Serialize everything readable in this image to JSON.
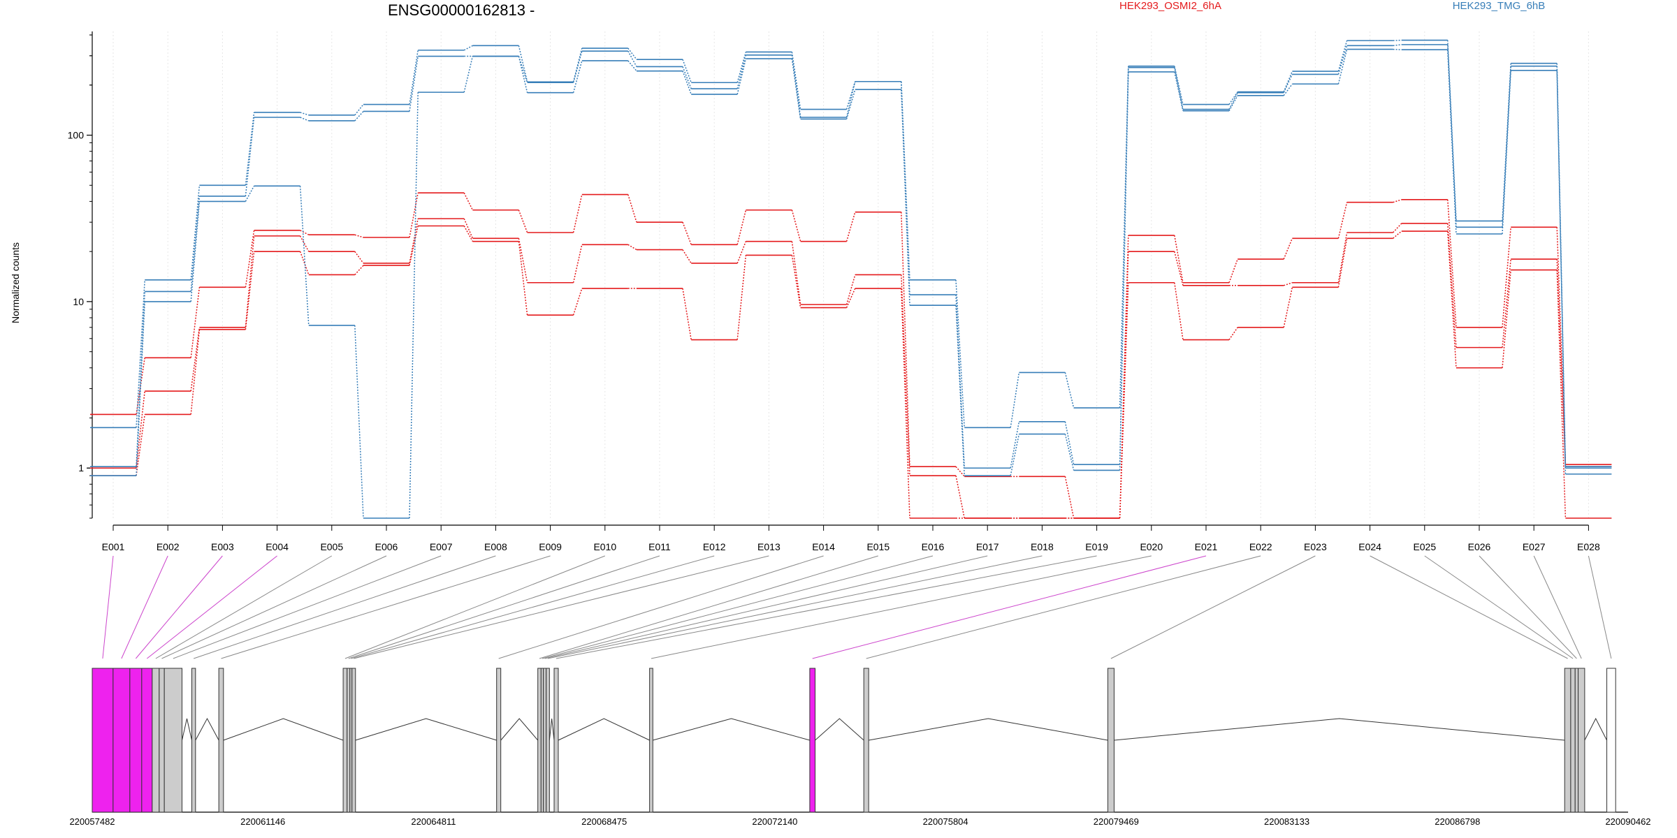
{
  "chart_data": {
    "type": "line",
    "title": "ENSG00000162813 -",
    "ylabel": "Normalized counts",
    "yscale": "log",
    "ylim": [
      0.5,
      420
    ],
    "yticks": [
      1,
      10,
      100
    ],
    "ytick_labels": [
      "1",
      "10",
      "100"
    ],
    "grid": "vertical-dotted",
    "categories": [
      "E001",
      "E002",
      "E003",
      "E004",
      "E005",
      "E006",
      "E007",
      "E008",
      "E009",
      "E010",
      "E011",
      "E012",
      "E013",
      "E014",
      "E015",
      "E016",
      "E017",
      "E018",
      "E019",
      "E020",
      "E021",
      "E022",
      "E023",
      "E024",
      "E025",
      "E026",
      "E027",
      "E028"
    ],
    "groups": [
      {
        "name": "HEK293_OSMI2_6hA",
        "color": "#e41a1c"
      },
      {
        "name": "HEK293_TMG_6hB",
        "color": "#377eb8"
      }
    ],
    "series": [
      {
        "group": 0,
        "values": [
          2.1,
          4.6,
          12.2,
          26.8,
          25.2,
          24.3,
          45.0,
          35.5,
          26.0,
          44.0,
          30.0,
          22.0,
          35.5,
          23.0,
          34.5,
          1.02,
          0.89,
          0.89,
          0.5,
          25.0,
          13.0,
          18.0,
          24.0,
          39.5,
          41.0,
          7.0,
          28.0,
          1.05
        ]
      },
      {
        "group": 0,
        "values": [
          1.0,
          2.9,
          7.0,
          24.8,
          20.0,
          17.0,
          31.5,
          24.0,
          13.0,
          22.0,
          20.5,
          17.0,
          23.0,
          9.6,
          14.5,
          0.9,
          0.5,
          0.5,
          0.5,
          20.0,
          12.5,
          12.5,
          13.0,
          26.0,
          29.5,
          5.3,
          18.0,
          1.02
        ]
      },
      {
        "group": 0,
        "values": [
          0.9,
          2.1,
          6.8,
          20.0,
          14.5,
          16.5,
          28.5,
          23.0,
          8.3,
          12.0,
          12.0,
          5.9,
          19.0,
          9.2,
          12.0,
          0.5,
          0.5,
          0.5,
          0.5,
          13.0,
          5.9,
          7.0,
          12.2,
          24.0,
          26.5,
          4.0,
          15.5,
          0.5
        ]
      },
      {
        "group": 1,
        "values": [
          1.75,
          13.5,
          50.0,
          137.0,
          132.0,
          153.0,
          324.0,
          345.0,
          209.0,
          333.0,
          285.0,
          207.0,
          316.0,
          143.0,
          210.0,
          13.5,
          1.75,
          3.75,
          2.3,
          260.0,
          153.0,
          182.0,
          242.0,
          370.0,
          372.0,
          30.5,
          270.0,
          1.02
        ]
      },
      {
        "group": 1,
        "values": [
          1.02,
          11.5,
          43.0,
          128.0,
          122.0,
          139.0,
          298.0,
          298.0,
          207.0,
          320.0,
          258.0,
          190.0,
          303.0,
          128.0,
          210.0,
          11.0,
          1.0,
          1.9,
          1.05,
          255.0,
          143.0,
          180.0,
          232.0,
          345.0,
          350.0,
          28.0,
          260.0,
          1.0
        ]
      },
      {
        "group": 1,
        "values": [
          0.9,
          10.0,
          40.0,
          49.5,
          7.2,
          0.5,
          181.0,
          298.0,
          180.0,
          280.0,
          243.0,
          176.0,
          288.0,
          125.0,
          188.0,
          9.5,
          0.9,
          1.6,
          0.97,
          240.0,
          140.0,
          173.0,
          203.0,
          328.0,
          326.0,
          25.5,
          245.0,
          0.92
        ]
      }
    ],
    "gene_model": {
      "coord_labels": [
        "220057482",
        "220061146",
        "220064811",
        "220068475",
        "220072140",
        "220075804",
        "220079469",
        "220083133",
        "220086798",
        "220090462"
      ],
      "range": [
        220057482,
        220090462
      ],
      "exons": [
        {
          "start": 220057482,
          "end": 220057930,
          "highlight": true
        },
        {
          "start": 220057930,
          "end": 220058290,
          "highlight": true
        },
        {
          "start": 220058290,
          "end": 220058545,
          "highlight": true
        },
        {
          "start": 220058545,
          "end": 220058770,
          "highlight": true
        },
        {
          "start": 220058770,
          "end": 220058920,
          "highlight": false
        },
        {
          "start": 220058920,
          "end": 220059030,
          "highlight": false
        },
        {
          "start": 220059030,
          "end": 220059410,
          "highlight": false
        },
        {
          "start": 220059620,
          "end": 220059700,
          "highlight": false
        },
        {
          "start": 220060200,
          "end": 220060300,
          "highlight": false
        },
        {
          "start": 220062870,
          "end": 220062955,
          "highlight": false
        },
        {
          "start": 220062955,
          "end": 220063015,
          "highlight": false
        },
        {
          "start": 220063015,
          "end": 220063060,
          "highlight": false
        },
        {
          "start": 220063060,
          "end": 220063135,
          "highlight": false
        },
        {
          "start": 220066165,
          "end": 220066255,
          "highlight": false
        },
        {
          "start": 220067050,
          "end": 220067120,
          "highlight": false
        },
        {
          "start": 220067120,
          "end": 220067170,
          "highlight": false
        },
        {
          "start": 220067170,
          "end": 220067230,
          "highlight": false
        },
        {
          "start": 220067230,
          "end": 220067300,
          "highlight": false
        },
        {
          "start": 220067400,
          "end": 220067490,
          "highlight": false
        },
        {
          "start": 220069450,
          "end": 220069520,
          "highlight": false
        },
        {
          "start": 220072890,
          "end": 220073005,
          "highlight": true
        },
        {
          "start": 220074050,
          "end": 220074155,
          "highlight": false
        },
        {
          "start": 220079290,
          "end": 220079425,
          "highlight": false
        },
        {
          "start": 220089100,
          "end": 220089230,
          "highlight": false
        },
        {
          "start": 220089230,
          "end": 220089325,
          "highlight": false
        },
        {
          "start": 220089325,
          "end": 220089390,
          "highlight": false
        },
        {
          "start": 220089390,
          "end": 220089530,
          "highlight": false
        },
        {
          "start": 220090005,
          "end": 220090195,
          "highlight": false
        }
      ]
    }
  }
}
